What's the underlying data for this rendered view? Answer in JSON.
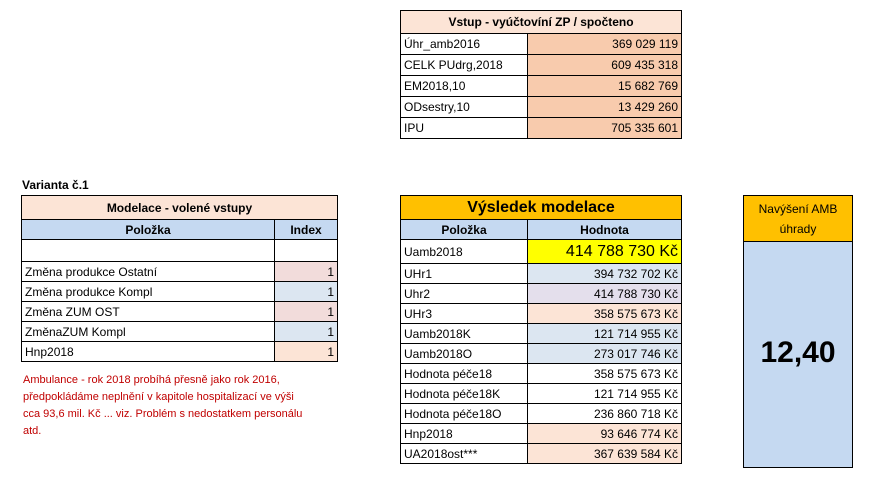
{
  "vstup": {
    "header": "Vstup - vyúčtovíní ZP / spočteno",
    "rows": [
      {
        "label": "Úhr_amb2016",
        "value": "369 029 119"
      },
      {
        "label": "CELK PUdrg,2018",
        "value": "609 435 318"
      },
      {
        "label": "EM2018,10",
        "value": "15 682 769"
      },
      {
        "label": "ODsestry,10",
        "value": "13 429 260"
      },
      {
        "label": "IPU",
        "value": "705 335 601"
      }
    ]
  },
  "varianta": {
    "label": "Varianta č.1"
  },
  "modelace": {
    "title": "Modelace - volené vstupy",
    "col_item": "Položka",
    "col_index": "Index",
    "rows": [
      {
        "label": "Změna produkce Ostatní",
        "value": "1",
        "color": "#f2dcdb"
      },
      {
        "label": "Změna produkce Kompl",
        "value": "1",
        "color": "#dce6f1"
      },
      {
        "label": "Změna ZUM OST",
        "value": "1",
        "color": "#f2dcdb"
      },
      {
        "label": "ZměnaZUM Kompl",
        "value": "1",
        "color": "#dce6f1"
      },
      {
        "label": "Hnp2018",
        "value": "1",
        "color": "#fce4d6"
      }
    ]
  },
  "vysledek": {
    "title": "Výsledek modelace",
    "col_item": "Položka",
    "col_value": "Hodnota",
    "rows": [
      {
        "label": "Uamb2018",
        "value": "414 788 730 Kč"
      },
      {
        "label": "UHr1",
        "value": "394 732 702 Kč"
      },
      {
        "label": "Uhr2",
        "value": "414 788 730 Kč"
      },
      {
        "label": "UHr3",
        "value": "358 575 673 Kč"
      },
      {
        "label": "Uamb2018K",
        "value": "121 714 955 Kč"
      },
      {
        "label": "Uamb2018O",
        "value": "273 017 746 Kč"
      },
      {
        "label": "Hodnota péče18",
        "value": "358 575 673 Kč"
      },
      {
        "label": "Hodnota péče18K",
        "value": "121 714 955 Kč"
      },
      {
        "label": "Hodnota péče18O",
        "value": "236 860 718 Kč"
      },
      {
        "label": "Hnp2018",
        "value": "93 646 774 Kč"
      },
      {
        "label": "UA2018ost***",
        "value": "367 639 584 Kč"
      }
    ]
  },
  "amb": {
    "header_line1": "Navýšení AMB",
    "header_line2": "úhrady",
    "value": "12,40"
  },
  "note": {
    "line1": "Ambulance - rok 2018 probíhá přesně jako rok 2016,",
    "line2": "předpokládáme neplnění v kapitole hospitalizací ve výši",
    "line3": "cca 93,6 mil. Kč ... viz. Problém s nedostatkem personálu",
    "line4": "atd."
  }
}
